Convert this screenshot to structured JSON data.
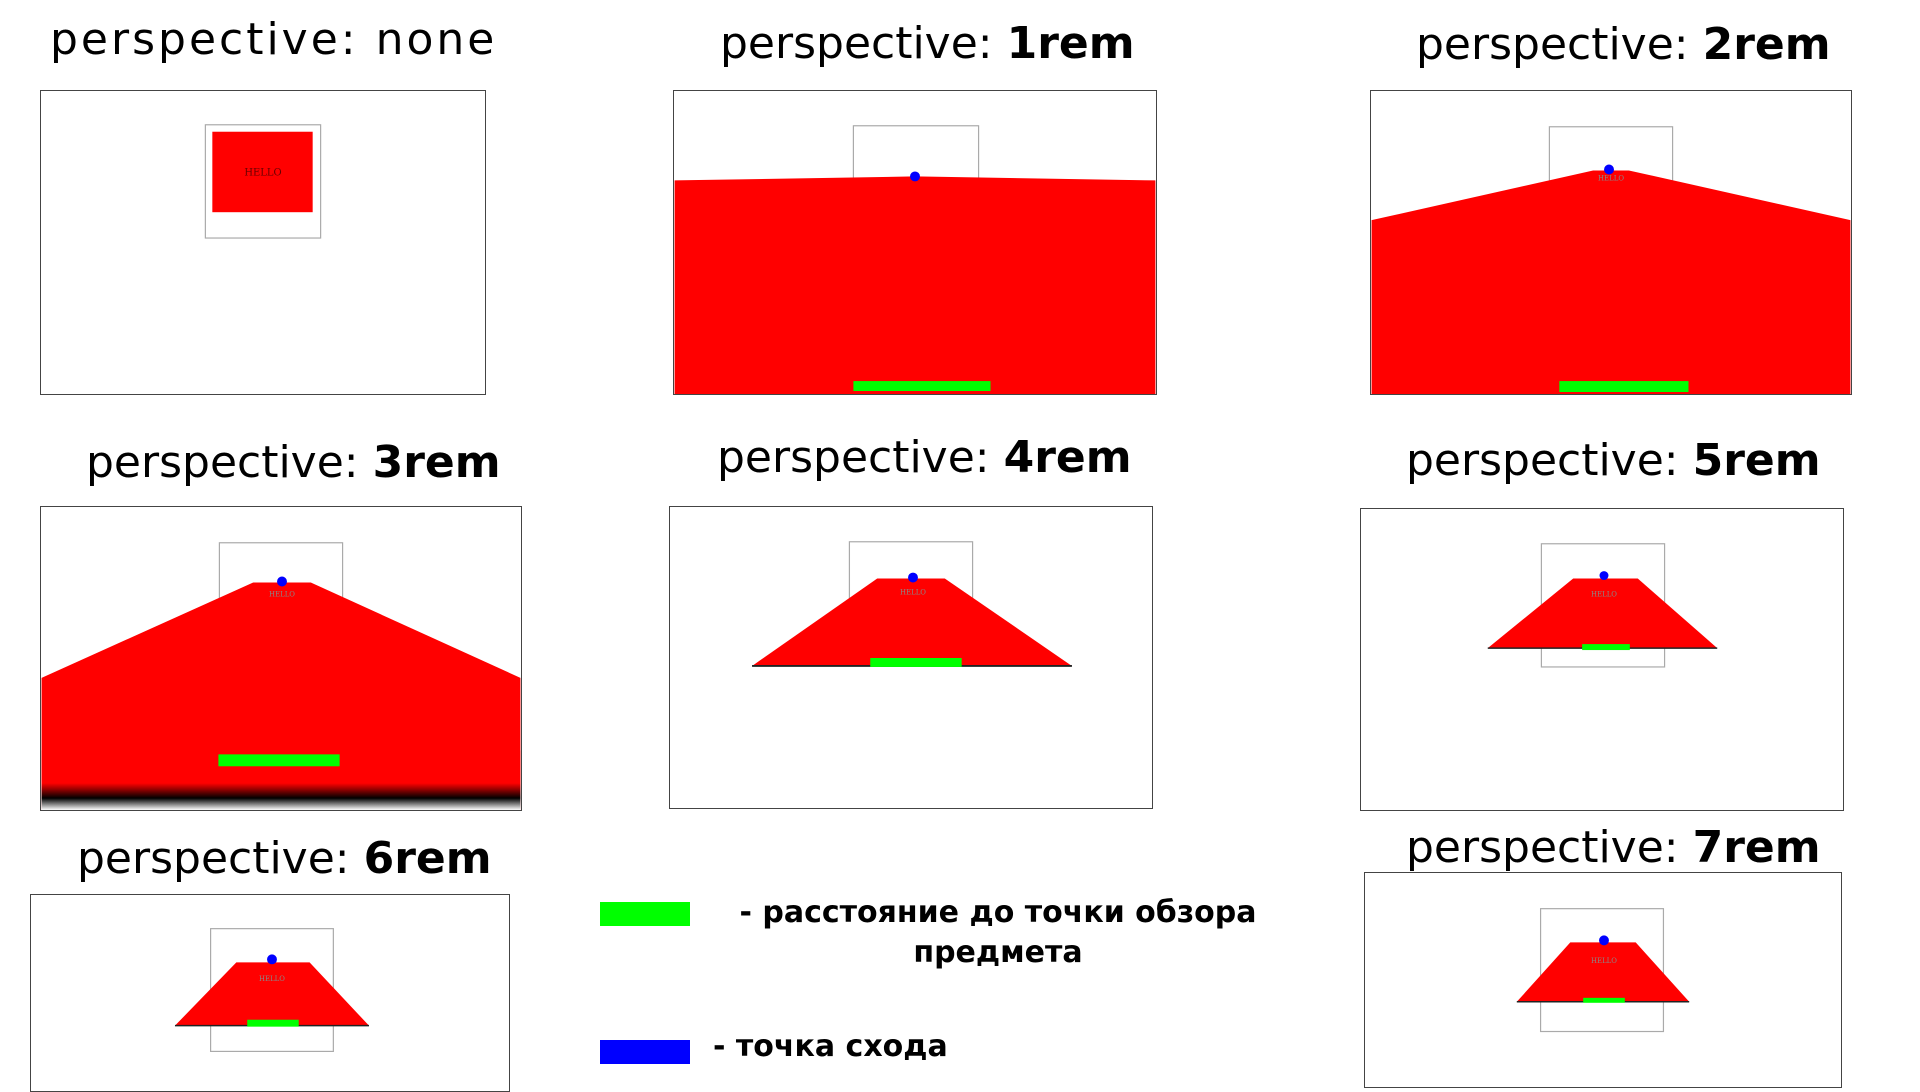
{
  "panels": [
    {
      "prefix": "perspective: ",
      "value": "none"
    },
    {
      "prefix": "perspective: ",
      "value": "1rem"
    },
    {
      "prefix": "perspective: ",
      "value": "2rem"
    },
    {
      "prefix": "perspective: ",
      "value": "3rem"
    },
    {
      "prefix": "perspective: ",
      "value": "4rem"
    },
    {
      "prefix": "perspective: ",
      "value": "5rem"
    },
    {
      "prefix": "perspective: ",
      "value": "6rem"
    },
    {
      "prefix": "perspective: ",
      "value": "7rem"
    }
  ],
  "box_text": "HELLO",
  "legend": {
    "green_label": "- расстояние до точки обзора\nпредмета",
    "blue_label": "- точка схода"
  },
  "colors": {
    "shape": "#ff0000",
    "distance_marker": "#00ff00",
    "vanishing_point": "#0000ff",
    "frame": "#444444",
    "inner_frame": "#aaaaaa"
  }
}
